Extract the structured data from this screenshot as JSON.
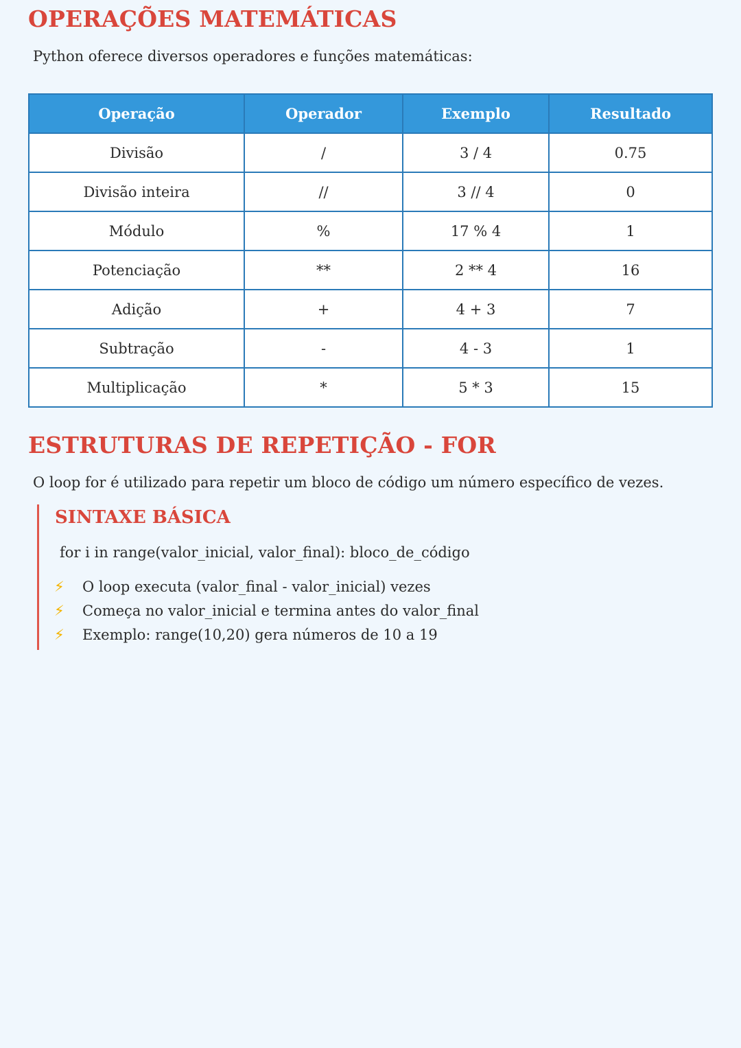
{
  "section1": {
    "title": "OPERAÇÕES MATEMÁTICAS",
    "intro": "Python oferece diversos operadores e funções matemáticas:"
  },
  "table": {
    "headers": [
      "Operação",
      "Operador",
      "Exemplo",
      "Resultado"
    ],
    "rows": [
      [
        "Divisão",
        "/",
        "3 / 4",
        "0.75"
      ],
      [
        "Divisão inteira",
        "//",
        "3 // 4",
        "0"
      ],
      [
        "Módulo",
        "%",
        "17 % 4",
        "1"
      ],
      [
        "Potenciação",
        "**",
        "2 ** 4",
        "16"
      ],
      [
        "Adição",
        "+",
        "4 + 3",
        "7"
      ],
      [
        "Subtração",
        "-",
        "4 - 3",
        "1"
      ],
      [
        "Multiplicação",
        "*",
        "5 * 3",
        "15"
      ]
    ]
  },
  "section2": {
    "title": "ESTRUTURAS DE REPETIÇÃO - FOR",
    "intro": "O loop for é utilizado para repetir um bloco de código um número específico de vezes."
  },
  "syntax": {
    "title": "SINTAXE BÁSICA",
    "code": "for i in range(valor_inicial, valor_final): bloco_de_código",
    "bullet_icon": "lightning-icon",
    "bullets": [
      "O loop executa (valor_final - valor_inicial) vezes",
      "Começa no valor_inicial e termina antes do valor_final",
      "Exemplo: range(10,20) gera números de 10 a 19"
    ]
  },
  "colors": {
    "heading": "#d9463b",
    "table_header": "#3498db",
    "table_border": "#2a7ab8",
    "background": "#f0f7fd"
  }
}
